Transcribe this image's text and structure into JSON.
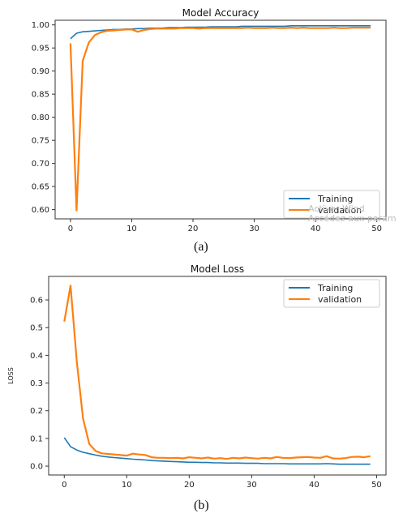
{
  "captions": {
    "a": "(a)",
    "b": "(b)"
  },
  "watermark": {
    "line1": "Activer Wind",
    "line2": "Accédez aux param"
  },
  "colors": {
    "training": "#1f77b4",
    "validation": "#ff7f0e",
    "axis": "#333333"
  },
  "chart_data": [
    {
      "type": "line",
      "title": "Model Accuracy",
      "xlabel": "",
      "ylabel": "",
      "xlim": [
        -2.5,
        51.5
      ],
      "ylim": [
        0.58,
        1.01
      ],
      "xticks": [
        0,
        10,
        20,
        30,
        40,
        50
      ],
      "yticks": [
        0.6,
        0.65,
        0.7,
        0.75,
        0.8,
        0.85,
        0.9,
        0.95,
        1.0
      ],
      "ytick_labels": [
        "0.60",
        "0.65",
        "0.70",
        "0.75",
        "0.80",
        "0.85",
        "0.90",
        "0.95",
        "1.00"
      ],
      "legend": "lower-right",
      "x": [
        0,
        1,
        2,
        3,
        4,
        5,
        6,
        7,
        8,
        9,
        10,
        11,
        12,
        13,
        14,
        15,
        16,
        17,
        18,
        19,
        20,
        21,
        22,
        23,
        24,
        25,
        26,
        27,
        28,
        29,
        30,
        31,
        32,
        33,
        34,
        35,
        36,
        37,
        38,
        39,
        40,
        41,
        42,
        43,
        44,
        45,
        46,
        47,
        48,
        49
      ],
      "series": [
        {
          "name": "Training",
          "values": [
            0.97,
            0.982,
            0.985,
            0.986,
            0.987,
            0.988,
            0.989,
            0.99,
            0.99,
            0.991,
            0.991,
            0.992,
            0.992,
            0.993,
            0.993,
            0.993,
            0.994,
            0.994,
            0.994,
            0.995,
            0.995,
            0.995,
            0.995,
            0.996,
            0.996,
            0.996,
            0.996,
            0.996,
            0.997,
            0.997,
            0.997,
            0.997,
            0.997,
            0.997,
            0.997,
            0.997,
            0.998,
            0.998,
            0.998,
            0.998,
            0.998,
            0.998,
            0.998,
            0.998,
            0.998,
            0.998,
            0.998,
            0.998,
            0.998,
            0.998
          ]
        },
        {
          "name": "validation",
          "values": [
            0.96,
            0.598,
            0.922,
            0.962,
            0.978,
            0.984,
            0.987,
            0.988,
            0.989,
            0.99,
            0.99,
            0.985,
            0.989,
            0.991,
            0.992,
            0.992,
            0.992,
            0.992,
            0.993,
            0.993,
            0.993,
            0.992,
            0.993,
            0.993,
            0.993,
            0.993,
            0.993,
            0.993,
            0.993,
            0.994,
            0.993,
            0.993,
            0.993,
            0.994,
            0.993,
            0.993,
            0.994,
            0.993,
            0.994,
            0.993,
            0.993,
            0.993,
            0.993,
            0.994,
            0.993,
            0.993,
            0.994,
            0.994,
            0.994,
            0.994
          ]
        }
      ]
    },
    {
      "type": "line",
      "title": "Model Loss",
      "xlabel": "",
      "ylabel": "LOSS",
      "xlim": [
        -2.5,
        51.5
      ],
      "ylim": [
        -0.032,
        0.685
      ],
      "xticks": [
        0,
        10,
        20,
        30,
        40,
        50
      ],
      "yticks": [
        0.0,
        0.1,
        0.2,
        0.3,
        0.4,
        0.5,
        0.6
      ],
      "ytick_labels": [
        "0.0",
        "0.1",
        "0.2",
        "0.3",
        "0.4",
        "0.5",
        "0.6"
      ],
      "legend": "top-right",
      "x": [
        0,
        1,
        2,
        3,
        4,
        5,
        6,
        7,
        8,
        9,
        10,
        11,
        12,
        13,
        14,
        15,
        16,
        17,
        18,
        19,
        20,
        21,
        22,
        23,
        24,
        25,
        26,
        27,
        28,
        29,
        30,
        31,
        32,
        33,
        34,
        35,
        36,
        37,
        38,
        39,
        40,
        41,
        42,
        43,
        44,
        45,
        46,
        47,
        48,
        49
      ],
      "series": [
        {
          "name": "Training",
          "values": [
            0.103,
            0.07,
            0.058,
            0.05,
            0.045,
            0.04,
            0.036,
            0.033,
            0.031,
            0.029,
            0.027,
            0.025,
            0.024,
            0.022,
            0.02,
            0.019,
            0.018,
            0.017,
            0.016,
            0.015,
            0.014,
            0.014,
            0.013,
            0.013,
            0.012,
            0.012,
            0.011,
            0.011,
            0.011,
            0.01,
            0.01,
            0.01,
            0.009,
            0.009,
            0.009,
            0.009,
            0.008,
            0.008,
            0.008,
            0.008,
            0.008,
            0.008,
            0.009,
            0.008,
            0.007,
            0.007,
            0.007,
            0.007,
            0.007,
            0.007
          ]
        },
        {
          "name": "validation",
          "values": [
            0.522,
            0.652,
            0.378,
            0.172,
            0.08,
            0.055,
            0.046,
            0.044,
            0.042,
            0.04,
            0.038,
            0.045,
            0.042,
            0.04,
            0.032,
            0.03,
            0.03,
            0.029,
            0.03,
            0.028,
            0.032,
            0.03,
            0.028,
            0.031,
            0.027,
            0.029,
            0.026,
            0.03,
            0.028,
            0.031,
            0.029,
            0.027,
            0.03,
            0.028,
            0.033,
            0.03,
            0.029,
            0.031,
            0.032,
            0.033,
            0.031,
            0.03,
            0.036,
            0.028,
            0.027,
            0.029,
            0.033,
            0.034,
            0.032,
            0.036
          ]
        }
      ]
    }
  ]
}
